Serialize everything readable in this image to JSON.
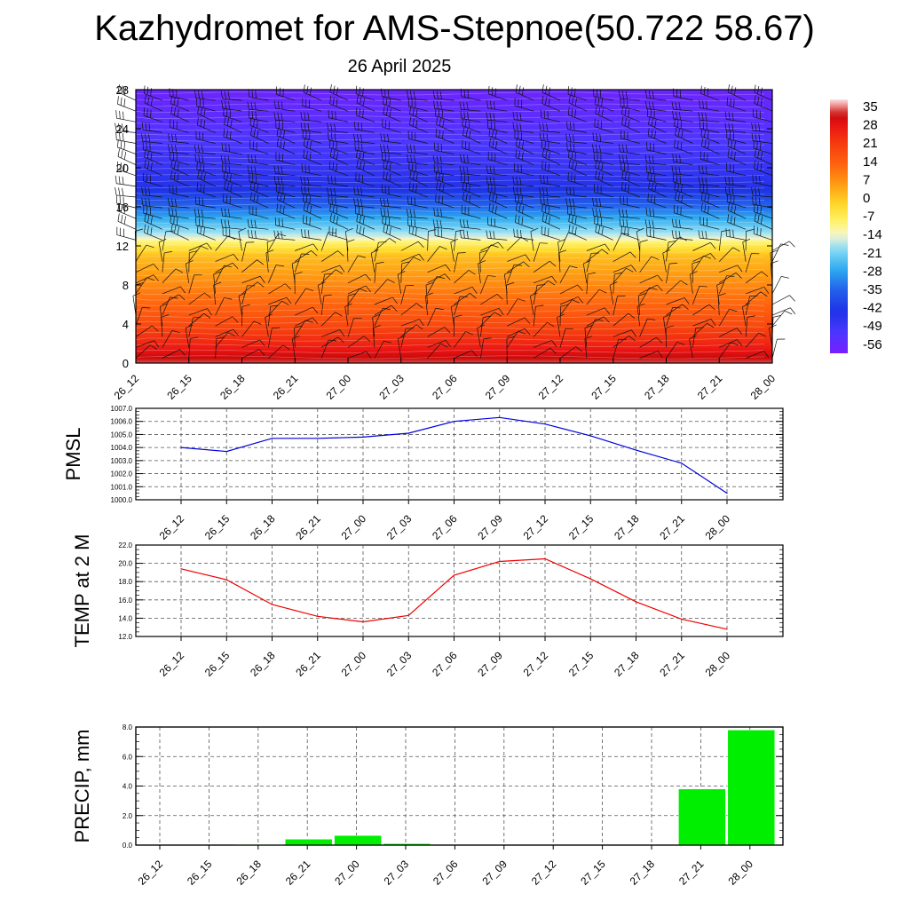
{
  "header": {
    "title": "Kazhydromet for AMS-Stepnoe(50.722 58.67)",
    "subtitle": "26 April 2025"
  },
  "colors": {
    "pmsl_line": "#0000dd",
    "temp_line": "#ee0000",
    "precip_bar": "#00ee00",
    "grid": "#000000"
  },
  "chart_data": [
    {
      "type": "heatmap",
      "name": "temperature-height-section",
      "x": [
        "26_12",
        "26_15",
        "26_18",
        "26_21",
        "27_00",
        "27_03",
        "27_06",
        "27_09",
        "27_12",
        "27_15",
        "27_18",
        "27_21",
        "28_00"
      ],
      "ylim": [
        0,
        28
      ],
      "yticks": [
        0,
        4,
        8,
        12,
        16,
        20,
        24,
        28
      ],
      "colorbar": {
        "labels": [
          "35",
          "28",
          "21",
          "14",
          "7",
          "0",
          "-7",
          "-14",
          "-21",
          "-28",
          "-35",
          "-42",
          "-49",
          "-56"
        ],
        "range": [
          -60,
          37
        ]
      },
      "temperature_profile": [
        {
          "height": 0,
          "value": 33
        },
        {
          "height": 2,
          "value": 24
        },
        {
          "height": 4,
          "value": 17
        },
        {
          "height": 8,
          "value": 7
        },
        {
          "height": 11,
          "value": 0
        },
        {
          "height": 12.2,
          "value": -8
        },
        {
          "height": 13,
          "value": -17
        },
        {
          "height": 16,
          "value": -35
        },
        {
          "height": 18,
          "value": -45
        },
        {
          "height": 21,
          "value": -50
        },
        {
          "height": 24,
          "value": -54
        },
        {
          "height": 28,
          "value": -58
        }
      ],
      "wind_barbs": true
    },
    {
      "type": "line",
      "name": "pmsl",
      "categories": [
        "26_12",
        "26_15",
        "26_18",
        "26_21",
        "27_00",
        "27_03",
        "27_06",
        "27_09",
        "27_12",
        "27_15",
        "27_18",
        "27_21",
        "28_00"
      ],
      "values": [
        1004.0,
        1003.7,
        1004.7,
        1004.7,
        1004.8,
        1005.1,
        1006.0,
        1006.3,
        1005.8,
        1004.9,
        1003.8,
        1002.8,
        1000.5
      ],
      "ylabel": "PMSL",
      "ylim": [
        1000.0,
        1007.0
      ],
      "yticks": [
        "1000.0",
        "1001.0",
        "1002.0",
        "1003.0",
        "1004.0",
        "1005.0",
        "1006.0",
        "1007.0"
      ]
    },
    {
      "type": "line",
      "name": "temp-2m",
      "categories": [
        "26_12",
        "26_15",
        "26_18",
        "26_21",
        "27_00",
        "27_03",
        "27_06",
        "27_09",
        "27_12",
        "27_15",
        "27_18",
        "27_21",
        "28_00"
      ],
      "values": [
        19.4,
        18.2,
        15.5,
        14.2,
        13.6,
        14.3,
        18.7,
        20.2,
        20.5,
        18.3,
        15.8,
        13.9,
        12.8
      ],
      "ylabel": "TEMP at 2 M",
      "ylim": [
        12.0,
        22.0
      ],
      "yticks": [
        "12.0",
        "14.0",
        "16.0",
        "18.0",
        "20.0",
        "22.0"
      ]
    },
    {
      "type": "bar",
      "name": "precip",
      "categories": [
        "26_12",
        "26_15",
        "26_18",
        "26_21",
        "27_00",
        "27_03",
        "27_06",
        "27_09",
        "27_12",
        "27_15",
        "27_18",
        "27_21",
        "28_00"
      ],
      "values": [
        0,
        0,
        0.05,
        0.4,
        0.65,
        0.1,
        0,
        0,
        0,
        0,
        0,
        3.8,
        7.8
      ],
      "ylabel": "PRECIP, mm",
      "ylim": [
        0,
        8.0
      ],
      "yticks": [
        "0.0",
        "2.0",
        "4.0",
        "6.0",
        "8.0"
      ]
    }
  ]
}
